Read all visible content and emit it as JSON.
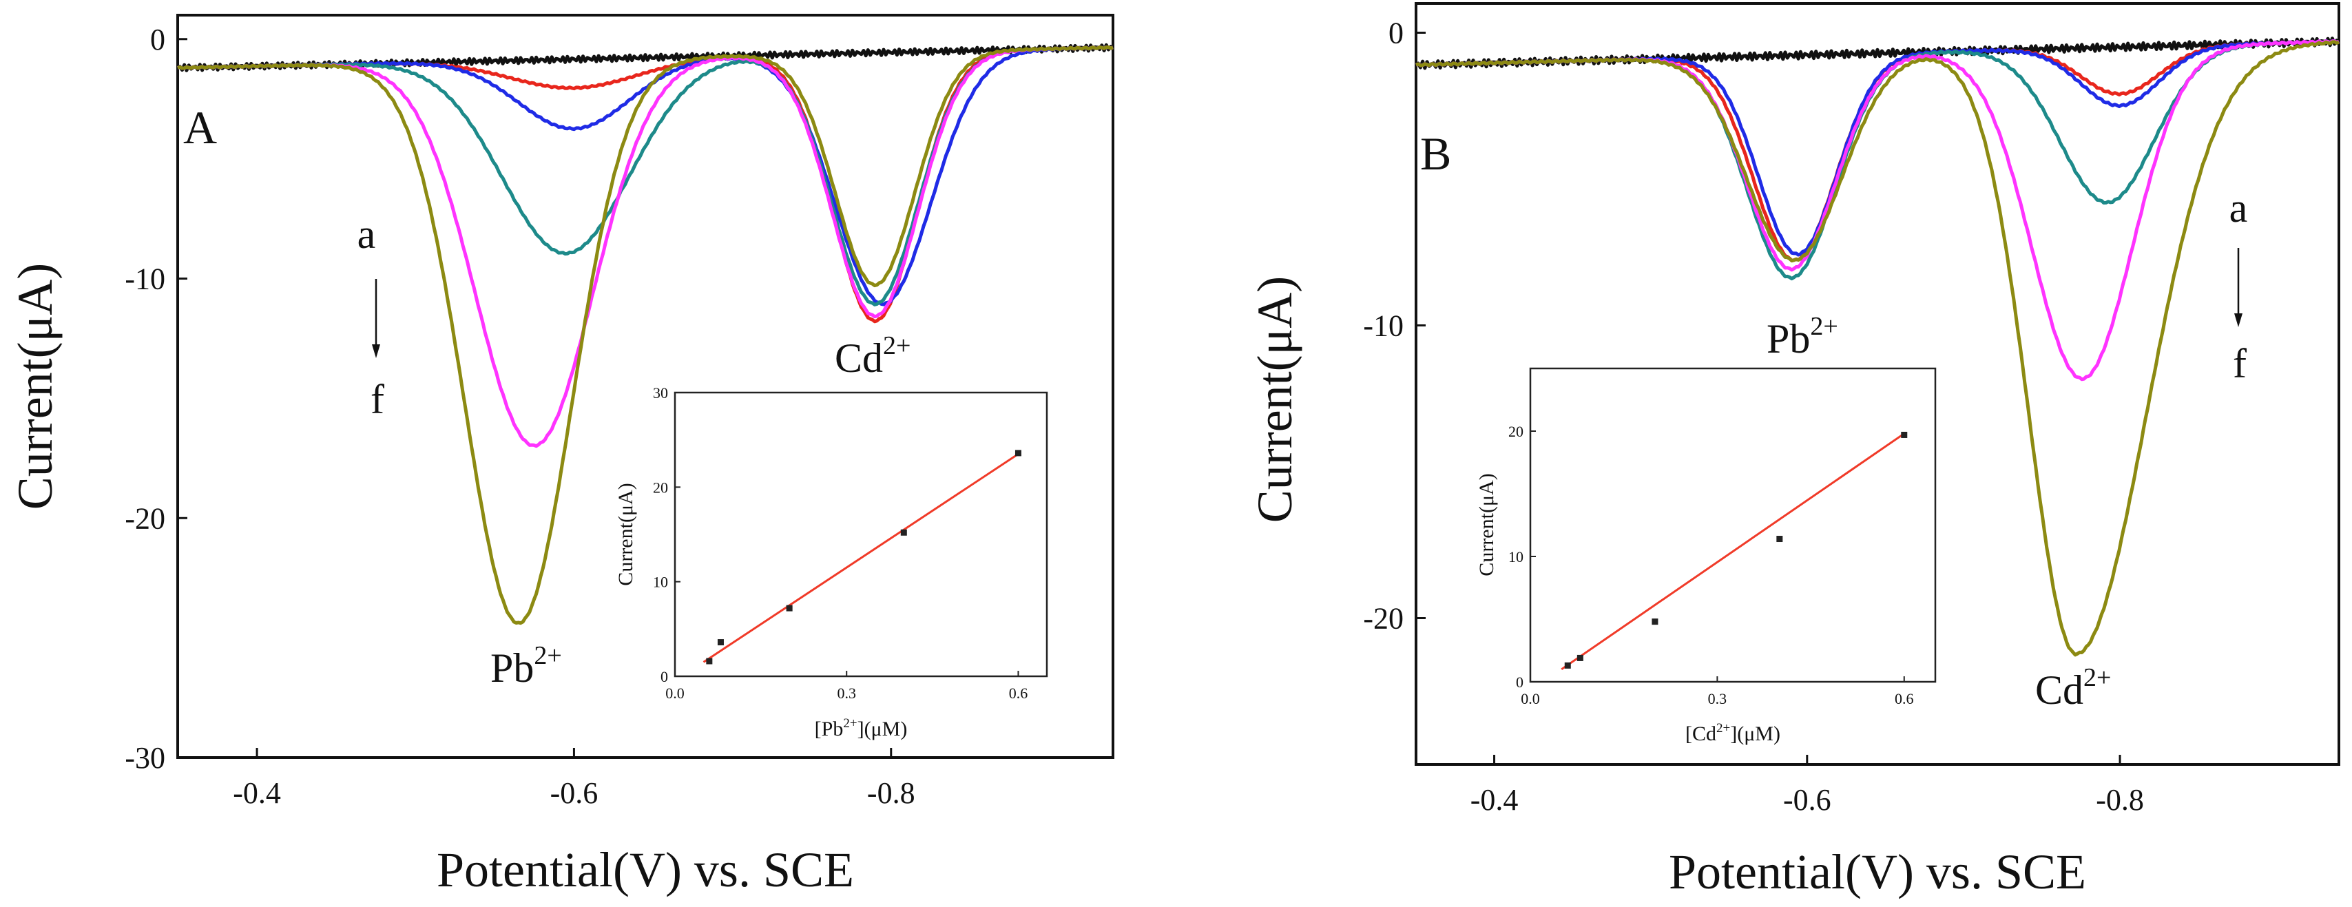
{
  "figure": "Differential pulse stripping voltammograms with calibration insets",
  "colors": {
    "a": "#111111",
    "b": "#e8261c",
    "c": "#1f2be6",
    "d": "#1d8a8a",
    "e": "#ff33ff",
    "f": "#8c8a12",
    "fit": "#f03a28",
    "points": "#222222"
  },
  "chart_data": [
    {
      "type": "line",
      "panel": "A",
      "xlabel": "Potential(V) vs. SCE",
      "ylabel": "Current(μA)",
      "xlim": [
        -0.35,
        -0.94
      ],
      "ylim": [
        -30,
        1
      ],
      "xticks": [
        -0.4,
        -0.6,
        -0.8
      ],
      "xtick_labels": [
        "-0.4",
        "-0.6",
        "-0.8"
      ],
      "yticks": [
        0,
        -10,
        -20,
        -30
      ],
      "ytick_labels": [
        "0",
        "-10",
        "-20",
        "-30"
      ],
      "series_order": {
        "from": "a",
        "to": "f"
      },
      "peak_labels": [
        {
          "base": "Pb",
          "sup": "2+",
          "x": -0.565
        },
        {
          "base": "Cd",
          "sup": "2+",
          "x": -0.79
        }
      ],
      "series": [
        {
          "name": "a",
          "baseline_start": -1.2,
          "baseline_end": -0.35,
          "peaks": [
            {
              "center": -0.6,
              "depth": 0,
              "width": 0.04
            },
            {
              "center": -0.79,
              "depth": 0,
              "width": 0.03
            }
          ]
        },
        {
          "name": "b",
          "baseline_start": -1.2,
          "baseline_end": -0.35,
          "peaks": [
            {
              "center": -0.6,
              "depth": 1.2,
              "width": 0.04
            },
            {
              "center": -0.79,
              "depth": 11.2,
              "width": 0.026
            }
          ]
        },
        {
          "name": "c",
          "baseline_start": -1.2,
          "baseline_end": -0.35,
          "peaks": [
            {
              "center": -0.6,
              "depth": 2.9,
              "width": 0.035
            },
            {
              "center": -0.795,
              "depth": 10.5,
              "width": 0.03
            }
          ]
        },
        {
          "name": "d",
          "baseline_start": -1.2,
          "baseline_end": -0.35,
          "peaks": [
            {
              "center": -0.595,
              "depth": 8.1,
              "width": 0.04
            },
            {
              "center": -0.79,
              "depth": 10.5,
              "width": 0.027
            }
          ]
        },
        {
          "name": "e",
          "baseline_start": -1.2,
          "baseline_end": -0.35,
          "peaks": [
            {
              "center": -0.575,
              "depth": 16.1,
              "width": 0.037
            },
            {
              "center": -0.79,
              "depth": 11.0,
              "width": 0.027
            }
          ]
        },
        {
          "name": "f",
          "baseline_start": -1.2,
          "baseline_end": -0.35,
          "peaks": [
            {
              "center": -0.565,
              "depth": 23.5,
              "width": 0.034
            },
            {
              "center": -0.79,
              "depth": 9.7,
              "width": 0.025
            }
          ]
        }
      ],
      "inset": {
        "type": "scatter",
        "xlabel_base": "[Pb",
        "xlabel_sup": "2+",
        "xlabel_rest": "](μM)",
        "ylabel": "Current(μA)",
        "xlim": [
          0,
          0.65
        ],
        "ylim": [
          0,
          30
        ],
        "xticks": [
          0.0,
          0.3,
          0.6
        ],
        "xtick_labels": [
          "0.0",
          "0.3",
          "0.6"
        ],
        "yticks": [
          0,
          10,
          20,
          30
        ],
        "ytick_labels": [
          "0",
          "10",
          "20",
          "30"
        ],
        "x": [
          0.06,
          0.08,
          0.2,
          0.4,
          0.6
        ],
        "y": [
          1.6,
          3.6,
          7.2,
          15.2,
          23.6
        ],
        "fit": {
          "x": [
            0.05,
            0.6
          ],
          "y": [
            1.5,
            23.5
          ]
        }
      }
    },
    {
      "type": "line",
      "panel": "B",
      "xlabel": "Potential(V) vs. SCE",
      "ylabel": "Current(μA)",
      "xlim": [
        -0.35,
        -0.94
      ],
      "ylim": [
        -25,
        1
      ],
      "xticks": [
        -0.4,
        -0.6,
        -0.8
      ],
      "xtick_labels": [
        "-0.4",
        "-0.6",
        "-0.8"
      ],
      "yticks": [
        0,
        -10,
        -20
      ],
      "ytick_labels": [
        "0",
        "-10",
        "-20"
      ],
      "series_order": {
        "from": "a",
        "to": "f"
      },
      "peak_labels": [
        {
          "base": "Pb",
          "sup": "2+",
          "x": -0.59
        },
        {
          "base": "Cd",
          "sup": "2+",
          "x": -0.775
        }
      ],
      "series": [
        {
          "name": "a",
          "baseline_start": -1.1,
          "baseline_end": -0.3,
          "peaks": [
            {
              "center": -0.59,
              "depth": 0,
              "width": 0.03
            },
            {
              "center": -0.79,
              "depth": 0,
              "width": 0.03
            }
          ]
        },
        {
          "name": "b",
          "baseline_start": -1.1,
          "baseline_end": -0.3,
          "peaks": [
            {
              "center": -0.592,
              "depth": 7.0,
              "width": 0.026
            },
            {
              "center": -0.8,
              "depth": 1.6,
              "width": 0.025
            }
          ]
        },
        {
          "name": "c",
          "baseline_start": -1.1,
          "baseline_end": -0.3,
          "peaks": [
            {
              "center": -0.594,
              "depth": 6.8,
              "width": 0.025
            },
            {
              "center": -0.8,
              "depth": 2.0,
              "width": 0.025
            }
          ]
        },
        {
          "name": "d",
          "baseline_start": -1.1,
          "baseline_end": -0.3,
          "peaks": [
            {
              "center": -0.59,
              "depth": 7.6,
              "width": 0.028
            },
            {
              "center": -0.792,
              "depth": 5.3,
              "width": 0.03
            }
          ]
        },
        {
          "name": "e",
          "baseline_start": -1.1,
          "baseline_end": -0.3,
          "peaks": [
            {
              "center": -0.59,
              "depth": 7.3,
              "width": 0.028
            },
            {
              "center": -0.776,
              "depth": 11.3,
              "width": 0.032
            }
          ]
        },
        {
          "name": "f",
          "baseline_start": -1.1,
          "baseline_end": -0.3,
          "peaks": [
            {
              "center": -0.592,
              "depth": 7.0,
              "width": 0.03
            },
            {
              "center": -0.772,
              "depth": 20.7,
              "width": 0.03,
              "tail": 0.045
            }
          ]
        }
      ],
      "inset": {
        "type": "scatter",
        "xlabel_base": "[Cd",
        "xlabel_sup": "2+",
        "xlabel_rest": "](μM)",
        "ylabel": "Current(μA)",
        "xlim": [
          0,
          0.65
        ],
        "ylim": [
          0,
          25
        ],
        "xticks": [
          0.0,
          0.3,
          0.6
        ],
        "xtick_labels": [
          "0.0",
          "0.3",
          "0.6"
        ],
        "yticks": [
          0,
          10,
          20
        ],
        "ytick_labels": [
          "0",
          "10",
          "20"
        ],
        "x": [
          0.06,
          0.08,
          0.2,
          0.4,
          0.6
        ],
        "y": [
          1.3,
          1.9,
          4.8,
          11.4,
          19.7
        ],
        "fit": {
          "x": [
            0.05,
            0.6
          ],
          "y": [
            1.0,
            19.8
          ]
        }
      }
    }
  ]
}
